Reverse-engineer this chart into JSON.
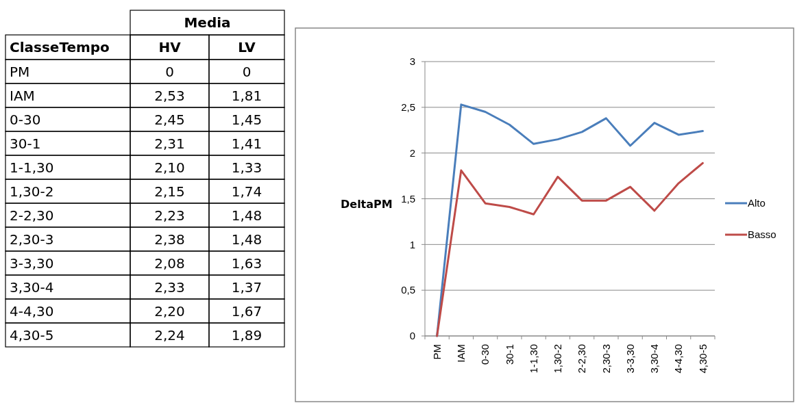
{
  "chart_data": [
    {
      "type": "other",
      "annotations": [
        "Media",
        "ClasseTempo",
        "HV",
        "LV",
        "PM",
        "0",
        "0",
        "IAM",
        "2,53",
        "1,81",
        "0-30",
        "2,45",
        "1,45",
        "30-1",
        "2,31",
        "1,41",
        "1-1,30",
        "2,10",
        "1,33",
        "1,30-2",
        "2,15",
        "1,74",
        "2-2,30",
        "2,23",
        "1,48",
        "2,30-3",
        "2,38",
        "1,48",
        "3-3,30",
        "2,08",
        "1,63",
        "3,30-4",
        "2,33",
        "1,37",
        "4-4,30",
        "2,20",
        "1,67",
        "4,30-5",
        "2,24",
        "1,89"
      ]
    },
    {
      "type": "line",
      "ylabel": "DeltaPM",
      "categories": [
        "PM",
        "IAM",
        "0-30",
        "30-1",
        "1-1,30",
        "1,30-2",
        "2-2,30",
        "2,30-3",
        "3-3,30",
        "3,30-4",
        "4-4,30",
        "4,30-5"
      ],
      "series": [
        {
          "name": "Alto",
          "color": "#4a7ebb",
          "values": [
            0,
            2.53,
            2.45,
            2.31,
            2.1,
            2.15,
            2.23,
            2.38,
            2.08,
            2.33,
            2.2,
            2.24
          ]
        },
        {
          "name": "Basso",
          "color": "#be4b48",
          "values": [
            0,
            1.81,
            1.45,
            1.41,
            1.33,
            1.74,
            1.48,
            1.48,
            1.63,
            1.37,
            1.67,
            1.89
          ]
        }
      ],
      "ylim": [
        0,
        3
      ],
      "yticks": [
        0,
        {
          "value": 0.5,
          "label": "0,5"
        },
        1,
        {
          "value": 1.5,
          "label": "1,5"
        },
        2,
        {
          "value": 2.5,
          "label": "2,5"
        },
        3
      ],
      "grid": "y",
      "legend": "right",
      "line_style": "solid"
    }
  ]
}
